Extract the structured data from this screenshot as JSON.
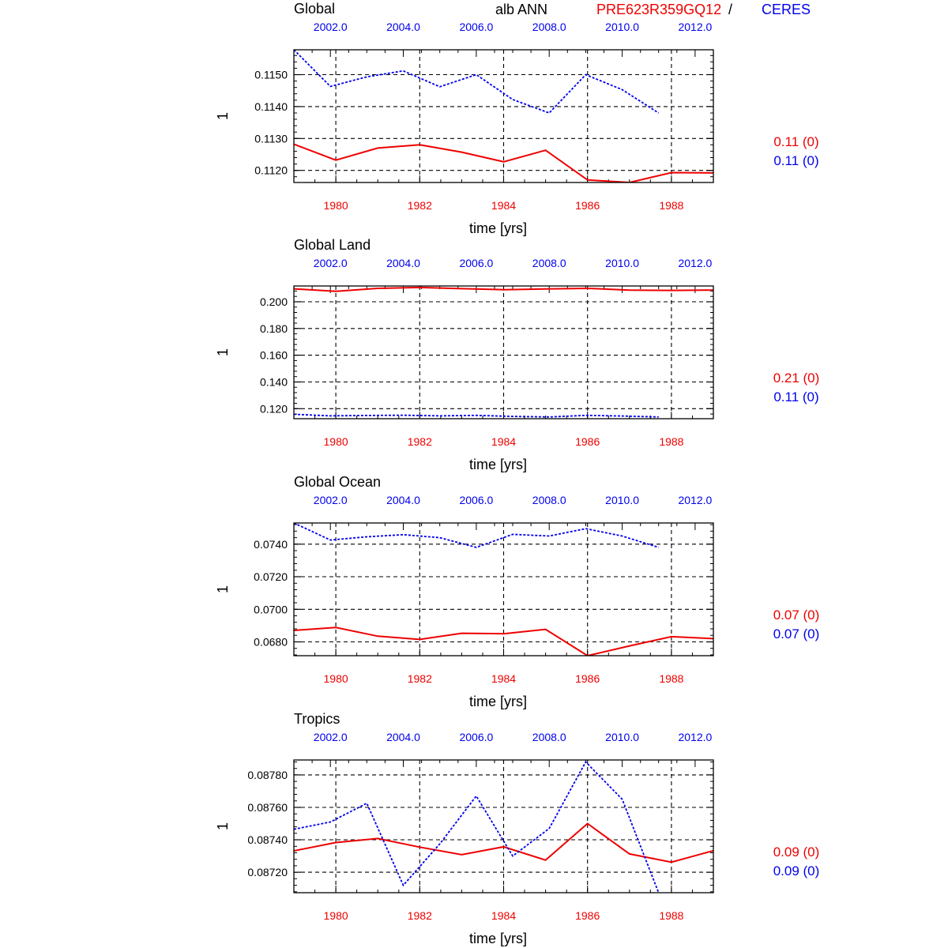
{
  "header": {
    "variable_label": "alb ANN",
    "model_name": "PRE623R359GQ12",
    "separator": "/",
    "obs_name": "CERES"
  },
  "colors": {
    "model": "#ee0000",
    "obs": "#0000ee",
    "axis": "#000000"
  },
  "chart_data": [
    {
      "type": "line",
      "title": "Global",
      "ylabel": "1",
      "xlabel": "time [yrs]",
      "ylim": [
        0.11162,
        0.11578
      ],
      "y_ticks": [
        0.112,
        0.113,
        0.114,
        0.115
      ],
      "y_tick_labels": [
        "0.1120",
        "0.1130",
        "0.1140",
        "0.1150"
      ],
      "bottom_axis": {
        "range": [
          1979,
          1989
        ],
        "ticks": [
          1980,
          1982,
          1984,
          1986,
          1988
        ],
        "tick_labels": [
          "1980",
          "1982",
          "1984",
          "1986",
          "1988"
        ]
      },
      "top_axis": {
        "range": [
          2001,
          2012.5
        ],
        "ticks": [
          2002,
          2004,
          2006,
          2008,
          2010,
          2012
        ],
        "tick_labels": [
          "2002.0",
          "2004.0",
          "2006.0",
          "2008.0",
          "2010.0",
          "2012.0"
        ]
      },
      "series": [
        {
          "name": "PRE623R359GQ12",
          "axis": "bottom",
          "style": "solid",
          "x": [
            1979,
            1980,
            1981,
            1982,
            1983,
            1984,
            1985,
            1986,
            1987,
            1988,
            1989
          ],
          "y": [
            0.11282,
            0.11232,
            0.1127,
            0.1128,
            0.11257,
            0.11227,
            0.11263,
            0.1117,
            0.11162,
            0.11193,
            0.11192
          ]
        },
        {
          "name": "CERES",
          "axis": "top",
          "style": "dashed",
          "x": [
            2001,
            2002,
            2003,
            2004,
            2005,
            2006,
            2007,
            2008,
            2009,
            2010,
            2011
          ],
          "y": [
            0.11578,
            0.11463,
            0.11493,
            0.11512,
            0.11462,
            0.115,
            0.11422,
            0.1138,
            0.115,
            0.11453,
            0.1138
          ]
        }
      ],
      "annotations": [
        {
          "text": "0.11 (0)",
          "series": "model"
        },
        {
          "text": "0.11 (0)",
          "series": "obs"
        }
      ]
    },
    {
      "type": "line",
      "title": "Global Land",
      "ylabel": "1",
      "xlabel": "time [yrs]",
      "ylim": [
        0.1125,
        0.2118
      ],
      "y_ticks": [
        0.12,
        0.14,
        0.16,
        0.18,
        0.2
      ],
      "y_tick_labels": [
        "0.120",
        "0.140",
        "0.160",
        "0.180",
        "0.200"
      ],
      "bottom_axis": {
        "range": [
          1979,
          1989
        ],
        "ticks": [
          1980,
          1982,
          1984,
          1986,
          1988
        ],
        "tick_labels": [
          "1980",
          "1982",
          "1984",
          "1986",
          "1988"
        ]
      },
      "top_axis": {
        "range": [
          2001,
          2012.5
        ],
        "ticks": [
          2002,
          2004,
          2006,
          2008,
          2010,
          2012
        ],
        "tick_labels": [
          "2002.0",
          "2004.0",
          "2006.0",
          "2008.0",
          "2010.0",
          "2012.0"
        ]
      },
      "series": [
        {
          "name": "PRE623R359GQ12",
          "axis": "bottom",
          "style": "solid",
          "x": [
            1979,
            1980,
            1981,
            1982,
            1983,
            1984,
            1985,
            1986,
            1987,
            1988,
            1989
          ],
          "y": [
            0.2097,
            0.2078,
            0.21,
            0.2107,
            0.2098,
            0.209,
            0.2096,
            0.21,
            0.2087,
            0.2085,
            0.2087
          ]
        },
        {
          "name": "CERES",
          "axis": "top",
          "style": "dashed",
          "x": [
            2001,
            2002,
            2003,
            2004,
            2005,
            2006,
            2007,
            2008,
            2009,
            2010,
            2011
          ],
          "y": [
            0.1158,
            0.1146,
            0.1149,
            0.1151,
            0.1146,
            0.115,
            0.1142,
            0.1138,
            0.115,
            0.1145,
            0.1138
          ]
        }
      ],
      "annotations": [
        {
          "text": "0.21 (0)",
          "series": "model"
        },
        {
          "text": "0.11 (0)",
          "series": "obs"
        }
      ]
    },
    {
      "type": "line",
      "title": "Global Ocean",
      "ylabel": "1",
      "xlabel": "time [yrs]",
      "ylim": [
        0.06715,
        0.0753
      ],
      "y_ticks": [
        0.068,
        0.07,
        0.072,
        0.074
      ],
      "y_tick_labels": [
        "0.0680",
        "0.0700",
        "0.0720",
        "0.0740"
      ],
      "bottom_axis": {
        "range": [
          1979,
          1989
        ],
        "ticks": [
          1980,
          1982,
          1984,
          1986,
          1988
        ],
        "tick_labels": [
          "1980",
          "1982",
          "1984",
          "1986",
          "1988"
        ]
      },
      "top_axis": {
        "range": [
          2001,
          2012.5
        ],
        "ticks": [
          2002,
          2004,
          2006,
          2008,
          2010,
          2012
        ],
        "tick_labels": [
          "2002.0",
          "2004.0",
          "2006.0",
          "2008.0",
          "2010.0",
          "2012.0"
        ]
      },
      "series": [
        {
          "name": "PRE623R359GQ12",
          "axis": "bottom",
          "style": "solid",
          "x": [
            1979,
            1980,
            1981,
            1982,
            1983,
            1984,
            1985,
            1986,
            1987,
            1988,
            1989
          ],
          "y": [
            0.0687,
            0.06888,
            0.06835,
            0.06815,
            0.06853,
            0.0685,
            0.06877,
            0.06715,
            0.06775,
            0.06832,
            0.0682
          ]
        },
        {
          "name": "CERES",
          "axis": "top",
          "style": "dashed",
          "x": [
            2001,
            2002,
            2003,
            2004,
            2005,
            2006,
            2007,
            2008,
            2009,
            2010,
            2011
          ],
          "y": [
            0.0753,
            0.07425,
            0.07445,
            0.07458,
            0.0744,
            0.0738,
            0.0746,
            0.0745,
            0.07495,
            0.0745,
            0.0738
          ]
        }
      ],
      "annotations": [
        {
          "text": "0.07 (0)",
          "series": "model"
        },
        {
          "text": "0.07 (0)",
          "series": "obs"
        }
      ]
    },
    {
      "type": "line",
      "title": "Tropics",
      "ylabel": "1",
      "xlabel": "time [yrs]",
      "ylim": [
        0.087074,
        0.087892
      ],
      "y_ticks": [
        0.0872,
        0.0874,
        0.0876,
        0.0878
      ],
      "y_tick_labels": [
        "0.08720",
        "0.08740",
        "0.08760",
        "0.08780"
      ],
      "bottom_axis": {
        "range": [
          1979,
          1989
        ],
        "ticks": [
          1980,
          1982,
          1984,
          1986,
          1988
        ],
        "tick_labels": [
          "1980",
          "1982",
          "1984",
          "1986",
          "1988"
        ]
      },
      "top_axis": {
        "range": [
          2001,
          2012.5
        ],
        "ticks": [
          2002,
          2004,
          2006,
          2008,
          2010,
          2012
        ],
        "tick_labels": [
          "2002.0",
          "2004.0",
          "2006.0",
          "2008.0",
          "2010.0",
          "2012.0"
        ]
      },
      "series": [
        {
          "name": "PRE623R359GQ12",
          "axis": "bottom",
          "style": "solid",
          "x": [
            1979,
            1980,
            1981,
            1982,
            1983,
            1984,
            1985,
            1986,
            1987,
            1988,
            1989
          ],
          "y": [
            0.087332,
            0.087383,
            0.087408,
            0.087355,
            0.087308,
            0.087357,
            0.087275,
            0.0875,
            0.087313,
            0.087262,
            0.087333
          ]
        },
        {
          "name": "CERES",
          "axis": "top",
          "style": "dashed",
          "x": [
            2001,
            2002,
            2003,
            2004,
            2005,
            2006,
            2007,
            2008,
            2009,
            2010,
            2011
          ],
          "y": [
            0.087465,
            0.08751,
            0.087625,
            0.08712,
            0.087375,
            0.08767,
            0.0873,
            0.08747,
            0.08788,
            0.08765,
            0.087074
          ]
        }
      ],
      "annotations": [
        {
          "text": "0.09 (0)",
          "series": "model"
        },
        {
          "text": "0.09 (0)",
          "series": "obs"
        }
      ]
    }
  ]
}
